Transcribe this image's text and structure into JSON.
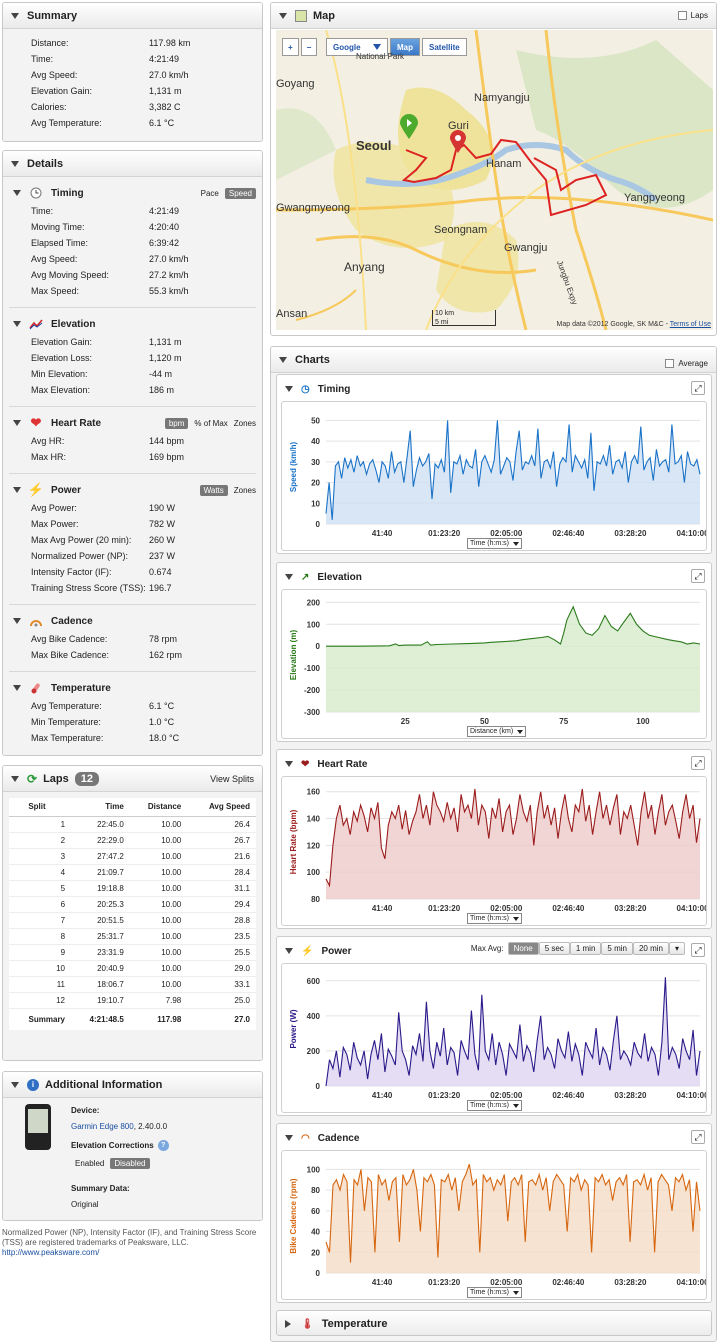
{
  "summary": {
    "title": "Summary",
    "rows": [
      [
        "Distance:",
        "117.98 km"
      ],
      [
        "Time:",
        "4:21:49"
      ],
      [
        "Avg Speed:",
        "27.0 km/h"
      ],
      [
        "Elevation Gain:",
        "1,131 m"
      ],
      [
        "Calories:",
        "3,382 C"
      ],
      [
        "Avg Temperature:",
        "6.1 °C"
      ]
    ]
  },
  "details": {
    "title": "Details",
    "timing": {
      "title": "Timing",
      "opt1": "Pace",
      "opt2": "Speed",
      "rows": [
        [
          "Time:",
          "4:21:49"
        ],
        [
          "Moving Time:",
          "4:20:40"
        ],
        [
          "Elapsed Time:",
          "6:39:42"
        ],
        [
          "Avg Speed:",
          "27.0 km/h"
        ],
        [
          "Avg Moving Speed:",
          "27.2 km/h"
        ],
        [
          "Max Speed:",
          "55.3 km/h"
        ]
      ]
    },
    "elevation": {
      "title": "Elevation",
      "rows": [
        [
          "Elevation Gain:",
          "1,131 m"
        ],
        [
          "Elevation Loss:",
          "1,120 m"
        ],
        [
          "Min Elevation:",
          "-44 m"
        ],
        [
          "Max Elevation:",
          "186 m"
        ]
      ]
    },
    "heart": {
      "title": "Heart Rate",
      "opt1": "bpm",
      "opt2": "% of Max",
      "opt3": "Zones",
      "rows": [
        [
          "Avg HR:",
          "144 bpm"
        ],
        [
          "Max HR:",
          "169 bpm"
        ]
      ]
    },
    "power": {
      "title": "Power",
      "opt1": "Watts",
      "opt2": "Zones",
      "rows": [
        [
          "Avg Power:",
          "190 W"
        ],
        [
          "Max Power:",
          "782 W"
        ],
        [
          "Max Avg Power (20 min):",
          "260 W"
        ],
        [
          "Normalized Power (NP):",
          "237 W"
        ],
        [
          "Intensity Factor (IF):",
          "0.674"
        ],
        [
          "Training Stress Score (TSS):",
          "196.7"
        ]
      ]
    },
    "cadence": {
      "title": "Cadence",
      "rows": [
        [
          "Avg Bike Cadence:",
          "78 rpm"
        ],
        [
          "Max Bike Cadence:",
          "162 rpm"
        ]
      ]
    },
    "temperature": {
      "title": "Temperature",
      "rows": [
        [
          "Avg Temperature:",
          "6.1 °C"
        ],
        [
          "Min Temperature:",
          "1.0 °C"
        ],
        [
          "Max Temperature:",
          "18.0 °C"
        ]
      ]
    }
  },
  "laps": {
    "title": "Laps",
    "count": "12",
    "view": "View Splits",
    "headers": [
      "Split",
      "Time",
      "Distance",
      "Avg Speed"
    ],
    "rows": [
      [
        "1",
        "22:45.0",
        "10.00",
        "26.4"
      ],
      [
        "2",
        "22:29.0",
        "10.00",
        "26.7"
      ],
      [
        "3",
        "27:47.2",
        "10.00",
        "21.6"
      ],
      [
        "4",
        "21:09.7",
        "10.00",
        "28.4"
      ],
      [
        "5",
        "19:18.8",
        "10.00",
        "31.1"
      ],
      [
        "6",
        "20:25.3",
        "10.00",
        "29.4"
      ],
      [
        "7",
        "20:51.5",
        "10.00",
        "28.8"
      ],
      [
        "8",
        "25:31.7",
        "10.00",
        "23.5"
      ],
      [
        "9",
        "23:31.9",
        "10.00",
        "25.5"
      ],
      [
        "10",
        "20:40.9",
        "10.00",
        "29.0"
      ],
      [
        "11",
        "18:06.7",
        "10.00",
        "33.1"
      ],
      [
        "12",
        "19:10.7",
        "7.98",
        "25.0"
      ]
    ],
    "summary": [
      "Summary",
      "4:21:48.5",
      "117.98",
      "27.0"
    ]
  },
  "additional": {
    "title": "Additional Information",
    "device_label": "Device:",
    "device_name": "Garmin Edge 800",
    "device_ver": ", 2.40.0.0",
    "elev_label": "Elevation Corrections",
    "enabled": "Enabled",
    "disabled": "Disabled",
    "summary_label": "Summary Data:",
    "summary_value": "Original"
  },
  "footnote": {
    "text": "Normalized Power (NP), Intensity Factor (IF), and Training Stress Score (TSS) are registered trademarks of Peaksware, LLC.",
    "link": "http://www.peaksware.com/"
  },
  "map": {
    "title": "Map",
    "laps_label": "Laps",
    "provider": "Google",
    "btn_map": "Map",
    "btn_sat": "Satellite",
    "attribution": "Map data ©2012 Google, SK M&C -",
    "terms": "Terms of Use",
    "scale_km": "10 km",
    "scale_mi": "5 mi",
    "places": [
      "Seoul",
      "Guri",
      "Namyangju",
      "Hanam",
      "Goyang",
      "Gwangmyeong",
      "Seongnam",
      "Yangpyeong",
      "Anyang",
      "Gwangju",
      "Ansan",
      "National Park",
      "Jungbu Expy"
    ]
  },
  "charts": {
    "title": "Charts",
    "average": "Average",
    "timing": {
      "title": "Timing",
      "ylabel": "Speed (km/h)",
      "xsel": "Time (h:m:s)"
    },
    "elevation": {
      "title": "Elevation",
      "ylabel": "Elevation (m)",
      "xsel": "Distance (km)"
    },
    "heart": {
      "title": "Heart Rate",
      "ylabel": "Heart Rate (bpm)",
      "xsel": "Time (h:m:s)"
    },
    "power": {
      "title": "Power",
      "ylabel": "Power (W)",
      "xsel": "Time (h:m:s)",
      "maxavg": "Max Avg:",
      "opts": [
        "None",
        "5 sec",
        "1 min",
        "5 min",
        "20 min"
      ]
    },
    "cadence": {
      "title": "Cadence",
      "ylabel": "Bike Cadence (rpm)",
      "xsel": "Time (h:m:s)"
    },
    "temperature": {
      "title": "Temperature"
    }
  },
  "chart_data": [
    {
      "type": "line",
      "title": "Timing",
      "ylabel": "Speed (km/h)",
      "xlabel": "Time (h:m:s)",
      "ylim": [
        0,
        55
      ],
      "yticks": [
        0,
        10,
        20,
        30,
        40,
        50
      ],
      "xticks": [
        "41:40",
        "01:23:20",
        "02:05:00",
        "02:46:40",
        "03:28:20",
        "04:10:00"
      ],
      "color": "#1a73c8",
      "fill": "#cfe0f3",
      "series": [
        {
          "values": [
            5,
            20,
            2,
            28,
            30,
            22,
            32,
            27,
            31,
            25,
            33,
            28,
            30,
            24,
            29,
            31,
            26,
            20,
            30,
            28,
            22,
            35,
            25,
            29,
            30,
            20,
            32,
            45,
            18,
            26,
            32,
            28,
            30,
            34,
            12,
            29,
            27,
            31,
            25,
            50,
            15,
            30,
            29,
            33,
            24,
            31,
            28,
            27,
            36,
            18,
            30,
            33,
            29,
            25,
            31,
            50,
            24,
            28,
            32,
            30,
            21,
            35,
            45,
            26,
            30,
            29,
            33,
            28,
            46,
            22,
            30,
            31,
            27,
            35,
            18,
            29,
            32,
            30,
            48,
            25,
            33,
            30,
            27,
            31,
            22,
            44,
            16,
            30,
            29,
            33,
            28,
            38,
            24,
            30,
            31,
            27,
            35,
            20,
            30,
            33,
            29,
            47,
            26,
            30,
            32,
            21,
            36,
            28,
            30,
            31,
            25,
            48,
            29,
            30,
            33,
            20,
            35,
            29,
            28,
            31,
            24
          ]
        }
      ]
    },
    {
      "type": "line",
      "title": "Elevation",
      "ylabel": "Elevation (m)",
      "xlabel": "Distance (km)",
      "ylim": [
        -300,
        220
      ],
      "yticks": [
        -300,
        -200,
        -100,
        0,
        100,
        200
      ],
      "xticks": [
        25,
        50,
        75,
        100
      ],
      "xlim": [
        0,
        118
      ],
      "color": "#2a7a1a",
      "fill": "#d6ebcc",
      "series": [
        {
          "x": [
            0,
            10,
            20,
            22,
            23,
            25,
            30,
            32,
            33,
            35,
            40,
            45,
            50,
            52,
            55,
            60,
            62,
            65,
            68,
            70,
            72,
            74,
            75,
            76,
            78,
            80,
            82,
            84,
            86,
            88,
            90,
            92,
            94,
            96,
            98,
            100,
            102,
            105,
            108,
            110,
            112,
            114,
            116,
            118
          ],
          "values": [
            0,
            0,
            2,
            10,
            3,
            5,
            5,
            20,
            5,
            8,
            10,
            12,
            15,
            18,
            20,
            25,
            30,
            35,
            40,
            45,
            30,
            10,
            60,
            120,
            180,
            100,
            60,
            50,
            80,
            140,
            90,
            70,
            110,
            150,
            100,
            70,
            50,
            40,
            30,
            25,
            20,
            10,
            15,
            10
          ]
        }
      ]
    },
    {
      "type": "line",
      "title": "Heart Rate",
      "ylabel": "Heart Rate (bpm)",
      "xlabel": "Time (h:m:s)",
      "ylim": [
        80,
        165
      ],
      "yticks": [
        80,
        100,
        120,
        140,
        160
      ],
      "xticks": [
        "41:40",
        "01:23:20",
        "02:05:00",
        "02:46:40",
        "03:28:20",
        "04:10:00"
      ],
      "color": "#9b1c1c",
      "fill": "#eecaca",
      "series": [
        {
          "values": [
            95,
            90,
            120,
            140,
            150,
            135,
            140,
            128,
            145,
            138,
            150,
            142,
            130,
            148,
            140,
            152,
            118,
            110,
            135,
            145,
            140,
            150,
            132,
            146,
            128,
            138,
            145,
            158,
            140,
            150,
            135,
            160,
            150,
            145,
            138,
            152,
            140,
            148,
            130,
            158,
            145,
            150,
            140,
            162,
            135,
            150,
            145,
            125,
            148,
            140,
            155,
            130,
            145,
            150,
            128,
            140,
            158,
            145,
            138,
            150,
            120,
            145,
            160,
            140,
            150,
            135,
            148,
            125,
            145,
            158,
            140,
            130,
            150,
            145,
            162,
            138,
            150,
            128,
            145,
            160,
            140,
            150,
            135,
            148,
            158,
            128,
            145,
            140,
            150,
            135,
            120,
            145,
            160,
            140,
            150,
            128,
            145,
            158,
            135,
            145,
            150,
            138,
            125,
            145,
            158,
            140,
            150,
            122,
            140
          ]
        }
      ]
    },
    {
      "type": "line",
      "title": "Power",
      "ylabel": "Power (W)",
      "xlabel": "Time (h:m:s)",
      "ylim": [
        0,
        650
      ],
      "yticks": [
        0,
        200,
        400,
        600
      ],
      "xticks": [
        "41:40",
        "01:23:20",
        "02:05:00",
        "02:46:40",
        "03:28:20",
        "04:10:00"
      ],
      "color": "#2b1a8a",
      "fill": "#ddd4f1",
      "series": [
        {
          "values": [
            0,
            150,
            100,
            200,
            50,
            220,
            180,
            90,
            250,
            160,
            120,
            200,
            40,
            180,
            260,
            150,
            300,
            80,
            210,
            170,
            120,
            420,
            200,
            150,
            60,
            230,
            180,
            300,
            140,
            480,
            200,
            100,
            250,
            170,
            330,
            120,
            220,
            190,
            60,
            260,
            200,
            150,
            430,
            180,
            90,
            520,
            200,
            150,
            300,
            120,
            250,
            180,
            60,
            240,
            200,
            160,
            350,
            140,
            230,
            190,
            80,
            260,
            400,
            150,
            220,
            180,
            100,
            270,
            200,
            160,
            310,
            140,
            240,
            180,
            60,
            250,
            200,
            160,
            330,
            120,
            220,
            180,
            90,
            260,
            400,
            150,
            200,
            170,
            120,
            250,
            190,
            160,
            300,
            140,
            220,
            180,
            60,
            250,
            620,
            150,
            220,
            180,
            100,
            270,
            200,
            150,
            320,
            60,
            200
          ]
        }
      ]
    },
    {
      "type": "line",
      "title": "Cadence",
      "ylabel": "Bike Cadence (rpm)",
      "xlabel": "Time (h:m:s)",
      "ylim": [
        0,
        110
      ],
      "yticks": [
        0,
        20,
        40,
        60,
        80,
        100
      ],
      "xticks": [
        "41:40",
        "01:23:20",
        "02:05:00",
        "02:46:40",
        "03:28:20",
        "04:10:00"
      ],
      "color": "#d6660f",
      "fill": "#f5dcc6",
      "series": [
        {
          "values": [
            30,
            20,
            85,
            90,
            80,
            95,
            88,
            10,
            90,
            85,
            100,
            60,
            92,
            88,
            20,
            95,
            85,
            90,
            70,
            88,
            92,
            30,
            95,
            85,
            90,
            100,
            80,
            40,
            92,
            88,
            95,
            85,
            15,
            90,
            88,
            95,
            80,
            92,
            60,
            88,
            95,
            105,
            85,
            90,
            20,
            95,
            88,
            92,
            80,
            90,
            85,
            95,
            50,
            88,
            92,
            85,
            95,
            30,
            88,
            90,
            85,
            95,
            80,
            92,
            60,
            88,
            95,
            90,
            85,
            40,
            92,
            88,
            95,
            80,
            90,
            85,
            20,
            92,
            88,
            95,
            85,
            90,
            70,
            88,
            92,
            85,
            95,
            30,
            88,
            90,
            85,
            95,
            80,
            92,
            20,
            88,
            95,
            90,
            85,
            60,
            92,
            88,
            95,
            80,
            90,
            40,
            88,
            60
          ]
        }
      ]
    }
  ]
}
